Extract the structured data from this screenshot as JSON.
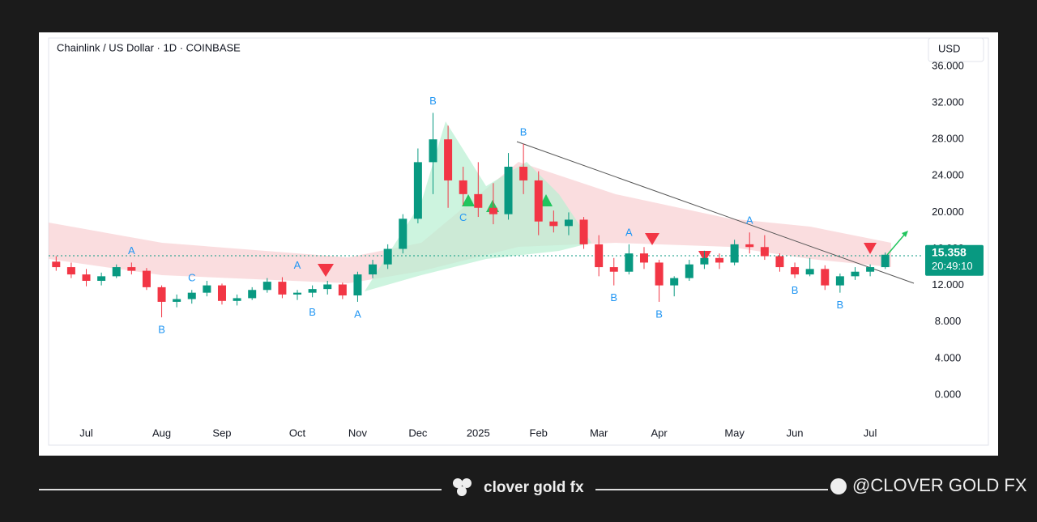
{
  "chart_data": {
    "type": "candlestick",
    "title": "Chainlink / US Dollar · 1D · COINBASE",
    "currency": "USD",
    "categories": [
      null,
      null,
      "Jul",
      null,
      null,
      null,
      null,
      "Aug",
      null,
      null,
      null,
      "Sep",
      null,
      null,
      null,
      null,
      "Oct",
      null,
      null,
      null,
      "Nov",
      null,
      null,
      null,
      "Dec",
      null,
      null,
      null,
      "2025",
      null,
      null,
      null,
      "Feb",
      null,
      null,
      null,
      "Mar",
      null,
      null,
      null,
      "Apr",
      null,
      null,
      null,
      null,
      "May",
      null,
      null,
      null,
      "Jun",
      null,
      null,
      null,
      null,
      "Jul",
      null
    ],
    "open": [
      14.6,
      14.0,
      13.2,
      12.5,
      13.0,
      14.0,
      13.6,
      11.8,
      10.2,
      10.5,
      11.2,
      12.0,
      10.3,
      10.6,
      11.5,
      12.4,
      11.0,
      11.2,
      11.6,
      12.1,
      10.9,
      13.2,
      14.3,
      16.0,
      19.3,
      25.5,
      28.0,
      23.5,
      22.0,
      20.5,
      19.8,
      25.0,
      23.5,
      19.0,
      18.5,
      19.2,
      16.5,
      14.0,
      13.5,
      15.5,
      14.5,
      12.0,
      12.8,
      14.3,
      15.0,
      14.5,
      16.5,
      16.2,
      15.2,
      14.0,
      13.2,
      13.8,
      12.0,
      13.0,
      13.5,
      14.0
    ],
    "high": [
      15.2,
      14.5,
      13.8,
      13.4,
      14.3,
      14.5,
      13.9,
      12.0,
      11.0,
      11.5,
      12.5,
      12.2,
      11.0,
      11.8,
      12.8,
      12.9,
      11.5,
      12.0,
      12.5,
      12.3,
      13.5,
      14.8,
      16.5,
      19.8,
      27.0,
      30.9,
      29.5,
      25.0,
      25.5,
      23.2,
      26.5,
      27.5,
      24.5,
      20.2,
      20.0,
      19.5,
      17.5,
      15.0,
      16.5,
      16.2,
      14.8,
      13.0,
      14.8,
      15.8,
      15.5,
      17.0,
      17.8,
      17.5,
      15.5,
      14.5,
      15.0,
      14.2,
      13.3,
      14.0,
      14.3,
      15.6
    ],
    "low": [
      13.6,
      12.8,
      11.9,
      12.0,
      12.8,
      13.2,
      11.5,
      8.5,
      9.6,
      10.0,
      10.8,
      9.9,
      9.8,
      10.4,
      11.2,
      10.6,
      10.4,
      10.7,
      11.0,
      10.5,
      10.2,
      12.8,
      13.8,
      15.5,
      18.8,
      22.0,
      20.5,
      20.8,
      19.5,
      18.7,
      19.2,
      22.0,
      17.5,
      17.8,
      17.5,
      16.0,
      13.0,
      12.0,
      13.2,
      13.8,
      10.2,
      10.8,
      12.5,
      13.8,
      13.8,
      14.2,
      15.5,
      14.8,
      13.5,
      12.8,
      13.0,
      11.5,
      11.2,
      12.6,
      13.0,
      13.8
    ],
    "close": [
      14.0,
      13.2,
      12.5,
      13.0,
      14.0,
      13.6,
      11.8,
      10.2,
      10.5,
      11.2,
      12.0,
      10.3,
      10.6,
      11.5,
      12.4,
      11.0,
      11.2,
      11.6,
      12.1,
      10.9,
      13.2,
      14.3,
      16.0,
      19.3,
      25.5,
      28.0,
      23.5,
      22.0,
      20.5,
      19.8,
      25.0,
      23.5,
      19.0,
      18.5,
      19.2,
      16.5,
      14.0,
      13.5,
      15.5,
      14.5,
      12.0,
      12.8,
      14.3,
      15.0,
      14.5,
      16.5,
      16.2,
      15.2,
      14.0,
      13.2,
      13.8,
      12.0,
      13.0,
      13.5,
      14.0,
      15.358
    ],
    "up_color": "#089981",
    "down_color": "#f23645",
    "ylim": [
      -5.5,
      39.1
    ],
    "yticks": [
      {
        "value": 0,
        "label": "0.000"
      },
      {
        "value": 4,
        "label": "4.000"
      },
      {
        "value": 8,
        "label": "8.000"
      },
      {
        "value": 12,
        "label": "12.000"
      },
      {
        "value": 16,
        "label": "16.000"
      },
      {
        "value": 20,
        "label": "20.000"
      },
      {
        "value": 24,
        "label": "24.000"
      },
      {
        "value": 28,
        "label": "28.000"
      },
      {
        "value": 32,
        "label": "32.000"
      },
      {
        "value": 36,
        "label": "36.000"
      }
    ],
    "grid": false,
    "countdown": "20:49:10",
    "annotations": [
      {
        "label": "A",
        "index": 5,
        "price": 14.5,
        "side": "above"
      },
      {
        "label": "B",
        "index": 7,
        "price": 8.5,
        "side": "below"
      },
      {
        "label": "C",
        "index": 9,
        "price": 11.5,
        "side": "above"
      },
      {
        "label": "A",
        "index": 16,
        "price": 12.9,
        "side": "above"
      },
      {
        "label": "B",
        "index": 17,
        "price": 10.4,
        "side": "below"
      },
      {
        "label": "A",
        "index": 20,
        "price": 10.2,
        "side": "below"
      },
      {
        "label": "B",
        "index": 25,
        "price": 30.9,
        "side": "above"
      },
      {
        "label": "C",
        "index": 27,
        "price": 20.8,
        "side": "below"
      },
      {
        "label": "B",
        "index": 31,
        "price": 27.5,
        "side": "above"
      },
      {
        "label": "B",
        "index": 37,
        "price": 12.0,
        "side": "below"
      },
      {
        "label": "A",
        "index": 38,
        "price": 16.5,
        "side": "above"
      },
      {
        "label": "B",
        "index": 40,
        "price": 10.2,
        "side": "below"
      },
      {
        "label": "A",
        "index": 46,
        "price": 17.8,
        "side": "above"
      },
      {
        "label": "B",
        "index": 49,
        "price": 12.8,
        "side": "below"
      },
      {
        "label": "B",
        "index": 52,
        "price": 11.2,
        "side": "below"
      }
    ]
  },
  "footer": {
    "brand": "clover gold fx",
    "handle": "@CLOVER GOLD FX"
  }
}
